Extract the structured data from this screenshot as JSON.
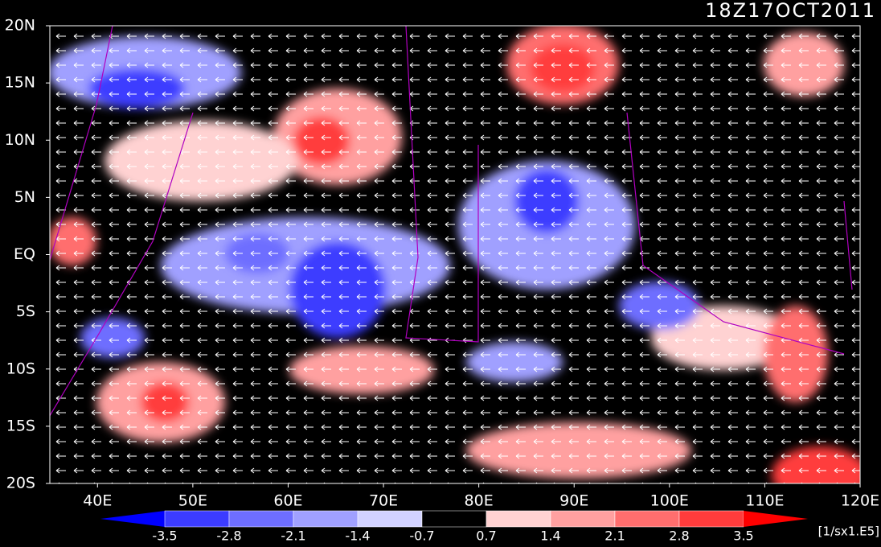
{
  "map": {
    "title": "18Z17OCT2011",
    "lat_labels": [
      "20N",
      "15N",
      "10N",
      "5N",
      "EQ",
      "5S",
      "10S",
      "15S",
      "20S"
    ],
    "lon_labels": [
      "40E",
      "50E",
      "60E",
      "70E",
      "80E",
      "90E",
      "100E",
      "110E",
      "120E"
    ]
  },
  "colorbar": {
    "levels": [
      -3.5,
      -2.8,
      -2.1,
      -1.4,
      -0.7,
      0.7,
      1.4,
      2.1,
      2.8,
      3.5
    ],
    "colors": [
      "#0000ff",
      "#3c3cff",
      "#6e6eff",
      "#a0a0ff",
      "#d2d2ff",
      "#000000",
      "#ffd2d2",
      "#ffa0a0",
      "#ff6e6e",
      "#ff3c3c",
      "#ff0000"
    ],
    "unit": "[1/sx1.E5]"
  }
}
